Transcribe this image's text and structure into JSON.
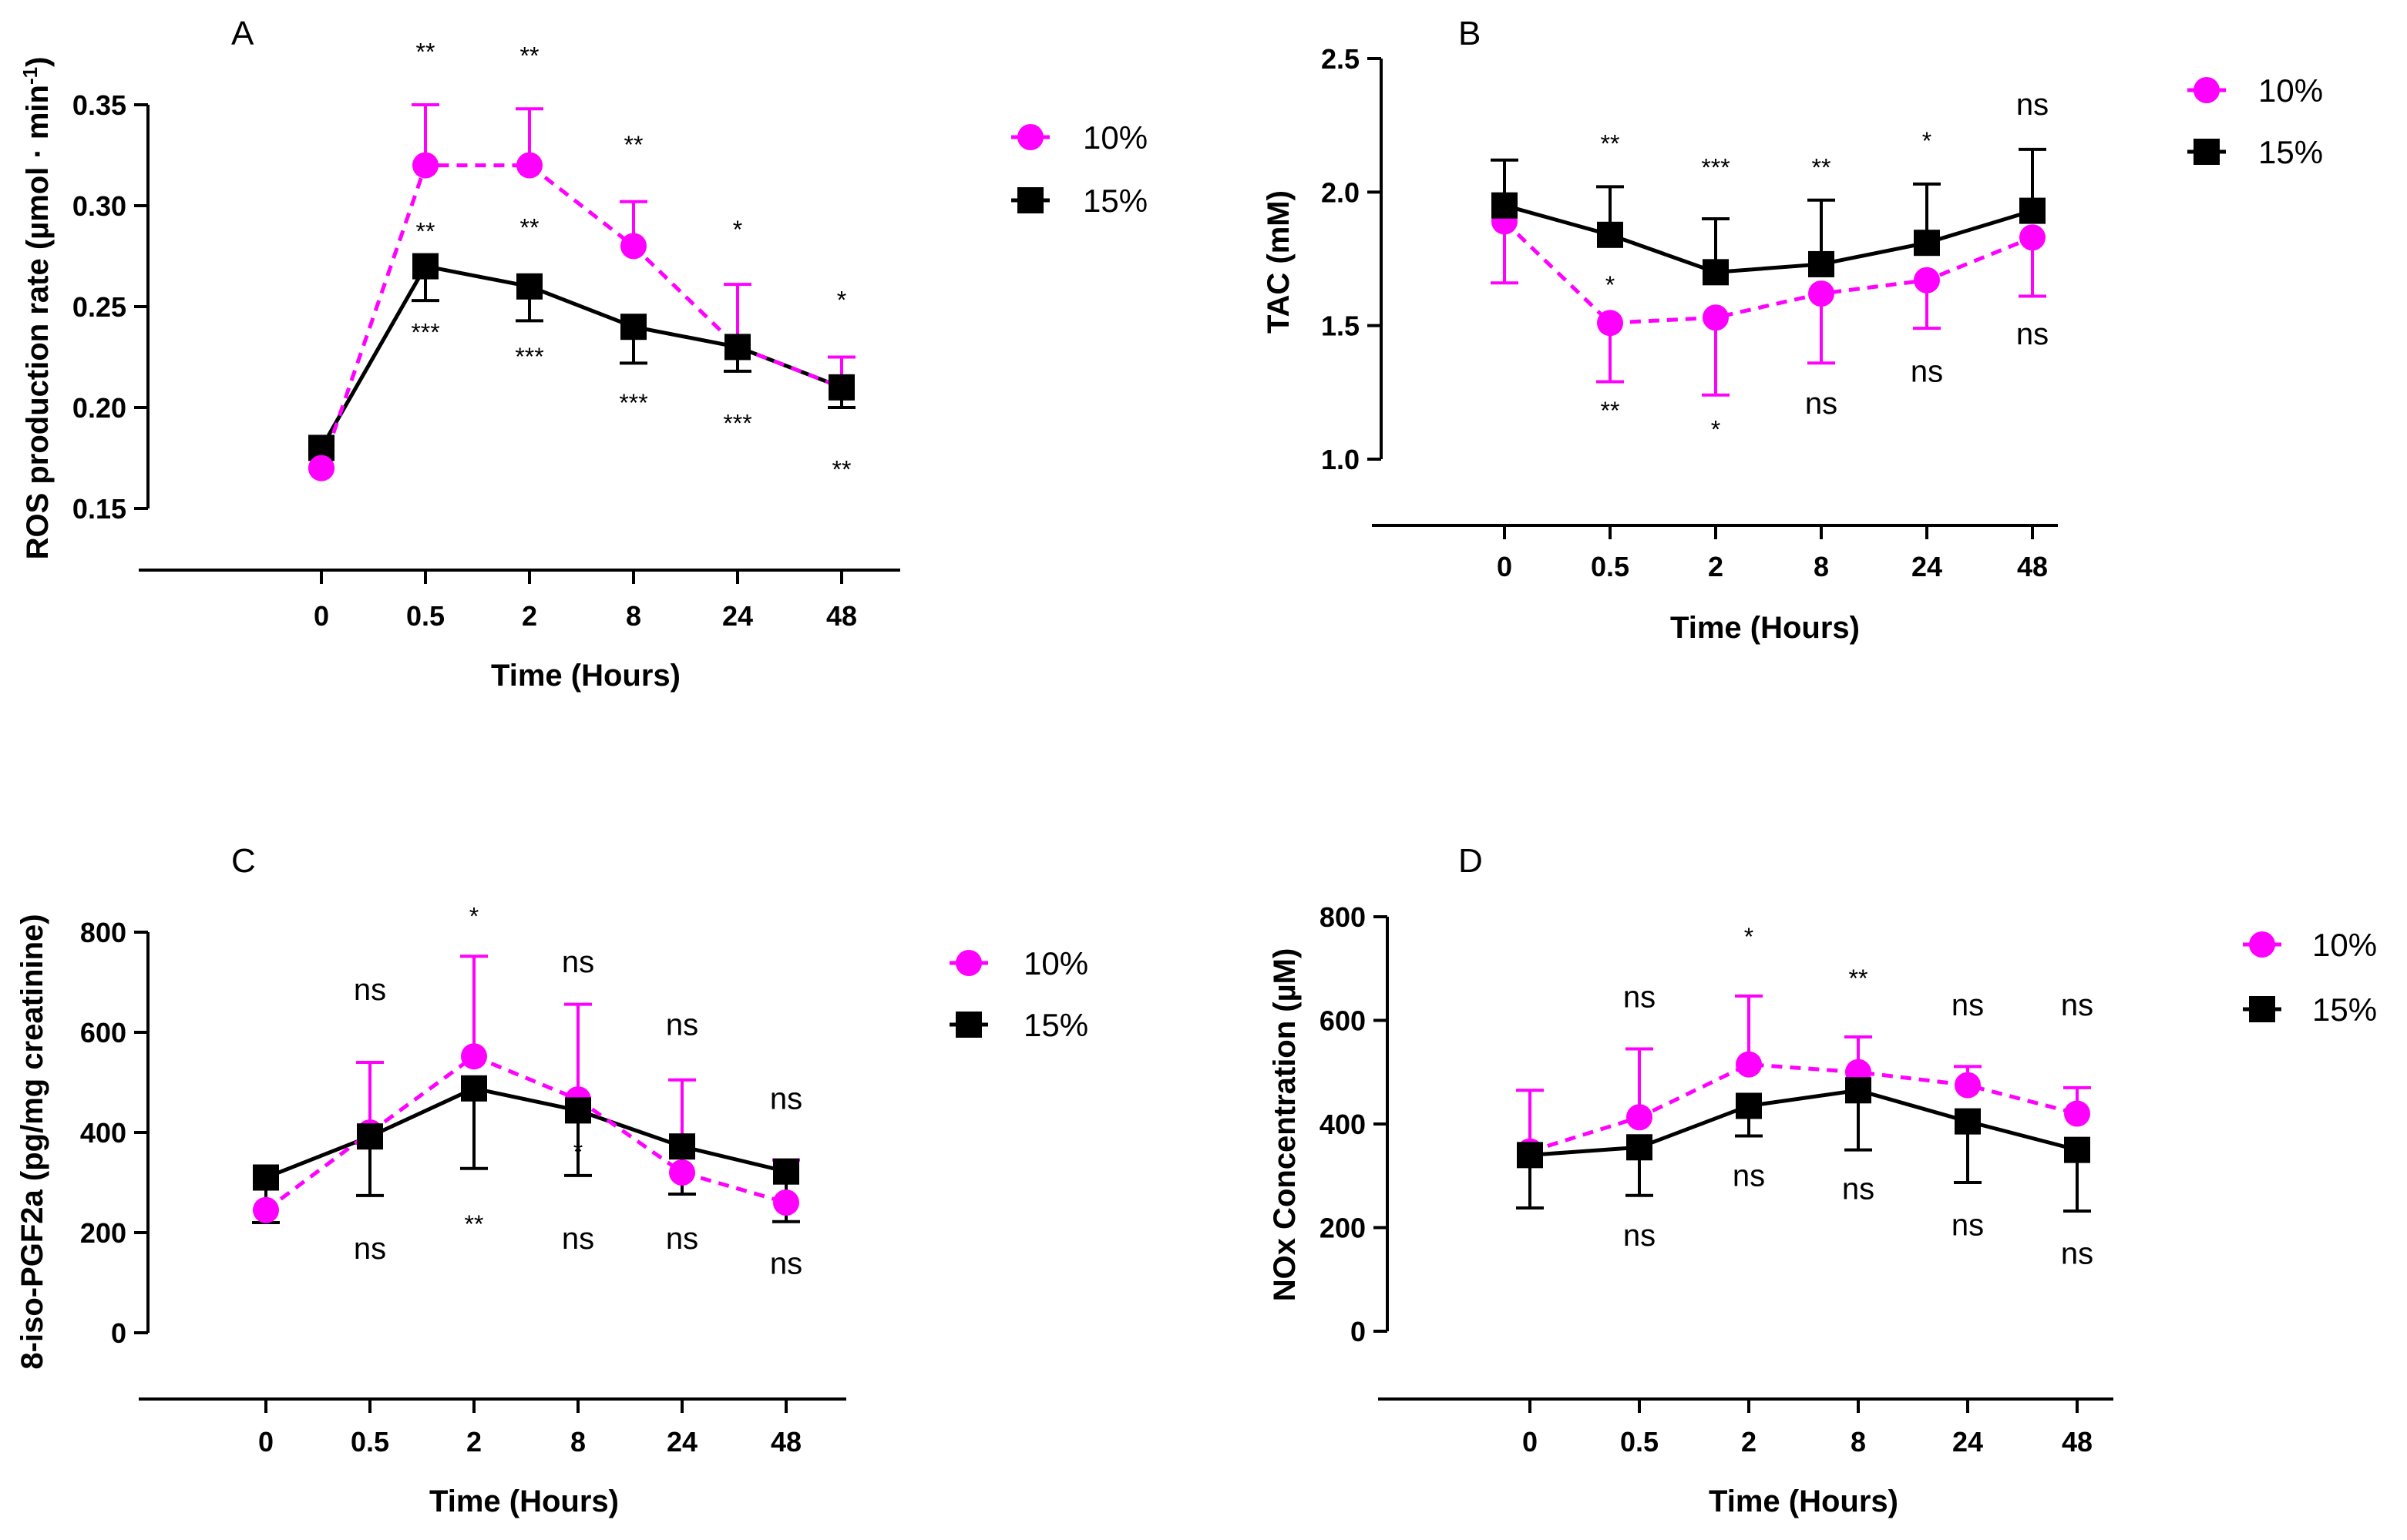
{
  "figure": {
    "colors": {
      "series_10": "#ff00ff",
      "series_15": "#000000",
      "axis": "#000000"
    }
  },
  "chart_data": [
    {
      "panel": "A",
      "type": "line",
      "categories": [
        "0",
        "0.5",
        "2",
        "8",
        "24",
        "48"
      ],
      "xlabel": "Time (Hours)",
      "ylabel_parts": [
        "ROS production rate (µmol · min",
        "-1",
        ")"
      ],
      "ylim": [
        0.15,
        0.35
      ],
      "yticks": [
        "0.15",
        "0.20",
        "0.25",
        "0.30",
        "0.35"
      ],
      "series": [
        {
          "name": "10%",
          "values": [
            0.17,
            0.32,
            0.32,
            0.28,
            0.23,
            0.21
          ],
          "err_up": [
            0,
            0.03,
            0.028,
            0.022,
            0.031,
            0.015
          ],
          "err_down": [
            0,
            0,
            0,
            0,
            0,
            0
          ]
        },
        {
          "name": "15%",
          "values": [
            0.18,
            0.27,
            0.26,
            0.24,
            0.23,
            0.21
          ],
          "err_up": [
            0,
            0,
            0,
            0,
            0,
            0
          ],
          "err_down": [
            0,
            0.017,
            0.017,
            0.018,
            0.012,
            0.01
          ]
        }
      ],
      "legend": [
        "10%",
        "15%"
      ],
      "annotations": [
        {
          "text": "**",
          "x": "0.5",
          "y": 0.372,
          "kind": "star"
        },
        {
          "text": "**",
          "x": "2",
          "y": 0.37,
          "kind": "star"
        },
        {
          "text": "**",
          "x": "8",
          "y": 0.326,
          "kind": "star"
        },
        {
          "text": "*",
          "x": "24",
          "y": 0.284,
          "kind": "star"
        },
        {
          "text": "*",
          "x": "48",
          "y": 0.249,
          "kind": "star"
        },
        {
          "text": "**",
          "x": "0.5",
          "y": 0.283,
          "kind": "star"
        },
        {
          "text": "**",
          "x": "2",
          "y": 0.285,
          "kind": "star"
        },
        {
          "text": "***",
          "x": "0.5",
          "y": 0.233,
          "kind": "star"
        },
        {
          "text": "***",
          "x": "2",
          "y": 0.221,
          "kind": "star"
        },
        {
          "text": "***",
          "x": "8",
          "y": 0.198,
          "kind": "star"
        },
        {
          "text": "***",
          "x": "24",
          "y": 0.188,
          "kind": "star"
        },
        {
          "text": "**",
          "x": "48",
          "y": 0.165,
          "kind": "star"
        }
      ]
    },
    {
      "panel": "B",
      "type": "line",
      "categories": [
        "0",
        "0.5",
        "2",
        "8",
        "24",
        "48"
      ],
      "xlabel": "Time (Hours)",
      "ylabel_parts": [
        "TAC (mM)"
      ],
      "ylim": [
        1.0,
        2.5
      ],
      "yticks": [
        "1.0",
        "1.5",
        "2.0",
        "2.5"
      ],
      "series": [
        {
          "name": "10%",
          "values": [
            1.89,
            1.51,
            1.53,
            1.62,
            1.67,
            1.83
          ],
          "err_up": [
            0,
            0,
            0,
            0,
            0,
            0
          ],
          "err_down": [
            0.23,
            0.22,
            0.29,
            0.26,
            0.18,
            0.22
          ]
        },
        {
          "name": "15%",
          "values": [
            1.95,
            1.84,
            1.7,
            1.73,
            1.81,
            1.93
          ],
          "err_up": [
            0.17,
            0.18,
            0.2,
            0.24,
            0.22,
            0.23
          ],
          "err_down": [
            0,
            0,
            0,
            0,
            0,
            0
          ]
        }
      ],
      "legend": [
        "10%",
        "15%"
      ],
      "annotations": [
        {
          "text": "**",
          "x": "0.5",
          "y": 2.15,
          "kind": "star"
        },
        {
          "text": "***",
          "x": "2",
          "y": 2.06,
          "kind": "star"
        },
        {
          "text": "**",
          "x": "8",
          "y": 2.06,
          "kind": "star"
        },
        {
          "text": "*",
          "x": "24",
          "y": 2.16,
          "kind": "star"
        },
        {
          "text": "ns",
          "x": "48",
          "y": 2.29,
          "kind": "ns"
        },
        {
          "text": "*",
          "x": "0.5",
          "y": 1.62,
          "kind": "star"
        },
        {
          "text": "**",
          "x": "0.5",
          "y": 1.15,
          "kind": "star"
        },
        {
          "text": "*",
          "x": "2",
          "y": 1.08,
          "kind": "star"
        },
        {
          "text": "ns",
          "x": "8",
          "y": 1.17,
          "kind": "ns"
        },
        {
          "text": "ns",
          "x": "24",
          "y": 1.29,
          "kind": "ns"
        },
        {
          "text": "ns",
          "x": "48",
          "y": 1.43,
          "kind": "ns"
        }
      ]
    },
    {
      "panel": "C",
      "type": "line",
      "categories": [
        "0",
        "0.5",
        "2",
        "8",
        "24",
        "48"
      ],
      "xlabel": "Time (Hours)",
      "ylabel_parts": [
        "8-iso-PGF2a (pg/mg creatinine)"
      ],
      "ylim": [
        0,
        800
      ],
      "yticks": [
        "0",
        "200",
        "400",
        "600",
        "800"
      ],
      "series": [
        {
          "name": "10%",
          "values": [
            245,
            400,
            552,
            466,
            320,
            260
          ],
          "err_up": [
            0,
            140,
            200,
            190,
            185,
            85
          ],
          "err_down": [
            0,
            0,
            0,
            0,
            0,
            0
          ]
        },
        {
          "name": "15%",
          "values": [
            310,
            392,
            488,
            444,
            372,
            322
          ],
          "err_up": [
            0,
            0,
            0,
            0,
            0,
            0
          ],
          "err_down": [
            90,
            118,
            160,
            130,
            95,
            100
          ]
        }
      ],
      "legend": [
        "10%",
        "15%"
      ],
      "annotations": [
        {
          "text": "*",
          "x": "2",
          "y": 815,
          "kind": "star"
        },
        {
          "text": "ns",
          "x": "0.5",
          "y": 665,
          "kind": "ns"
        },
        {
          "text": "ns",
          "x": "8",
          "y": 720,
          "kind": "ns"
        },
        {
          "text": "ns",
          "x": "24",
          "y": 595,
          "kind": "ns"
        },
        {
          "text": "ns",
          "x": "48",
          "y": 447,
          "kind": "ns"
        },
        {
          "text": "*",
          "x": "8",
          "y": 345,
          "kind": "star"
        },
        {
          "text": "**",
          "x": "2",
          "y": 200,
          "kind": "star"
        },
        {
          "text": "ns",
          "x": "0.5",
          "y": 148,
          "kind": "ns"
        },
        {
          "text": "ns",
          "x": "8",
          "y": 168,
          "kind": "ns"
        },
        {
          "text": "ns",
          "x": "24",
          "y": 168,
          "kind": "ns"
        },
        {
          "text": "ns",
          "x": "48",
          "y": 118,
          "kind": "ns"
        }
      ]
    },
    {
      "panel": "D",
      "type": "line",
      "categories": [
        "0",
        "0.5",
        "2",
        "8",
        "24",
        "48"
      ],
      "xlabel": "Time (Hours)",
      "ylabel_parts": [
        "NOx  Concentration (µM)"
      ],
      "ylim": [
        0,
        800
      ],
      "yticks": [
        "0",
        "200",
        "400",
        "600",
        "800"
      ],
      "series": [
        {
          "name": "10%",
          "values": [
            347,
            413,
            515,
            500,
            475,
            420
          ],
          "err_up": [
            118,
            132,
            132,
            68,
            36,
            50
          ],
          "err_down": [
            0,
            0,
            0,
            0,
            0,
            0
          ]
        },
        {
          "name": "15%",
          "values": [
            340,
            355,
            435,
            465,
            405,
            350
          ],
          "err_up": [
            0,
            0,
            0,
            0,
            0,
            0
          ],
          "err_down": [
            102,
            93,
            58,
            115,
            118,
            118
          ]
        }
      ],
      "legend": [
        "10%",
        "15%"
      ],
      "annotations": [
        {
          "text": "*",
          "x": "2",
          "y": 745,
          "kind": "star"
        },
        {
          "text": "**",
          "x": "8",
          "y": 665,
          "kind": "star"
        },
        {
          "text": "ns",
          "x": "0.5",
          "y": 625,
          "kind": "ns"
        },
        {
          "text": "ns",
          "x": "24",
          "y": 610,
          "kind": "ns"
        },
        {
          "text": "ns",
          "x": "48",
          "y": 610,
          "kind": "ns"
        },
        {
          "text": "ns",
          "x": "2",
          "y": 280,
          "kind": "ns"
        },
        {
          "text": "ns",
          "x": "8",
          "y": 255,
          "kind": "ns"
        },
        {
          "text": "ns",
          "x": "0.5",
          "y": 165,
          "kind": "ns"
        },
        {
          "text": "ns",
          "x": "24",
          "y": 185,
          "kind": "ns"
        },
        {
          "text": "ns",
          "x": "48",
          "y": 130,
          "kind": "ns"
        }
      ]
    }
  ]
}
